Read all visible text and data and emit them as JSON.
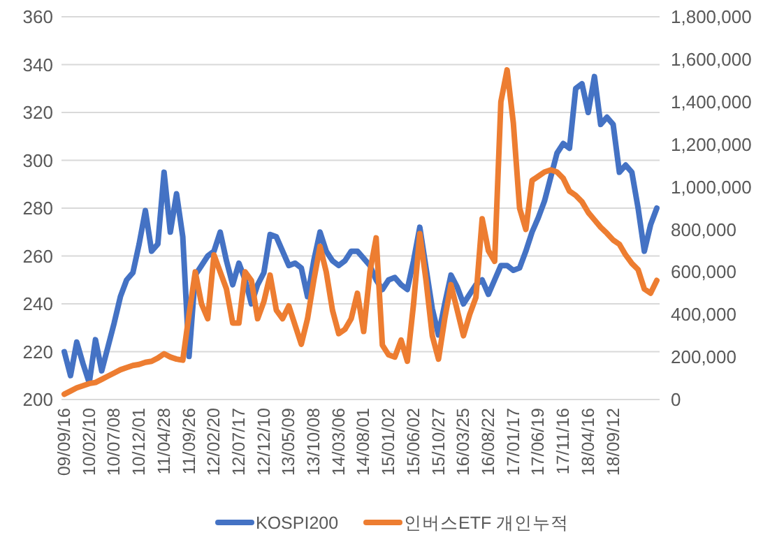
{
  "chart_data": {
    "type": "line",
    "categories": [
      "09/09/16",
      null,
      null,
      null,
      "10/02/10",
      null,
      null,
      null,
      "10/07/08",
      null,
      null,
      null,
      "10/12/01",
      null,
      null,
      null,
      "11/04/28",
      null,
      null,
      null,
      "11/09/26",
      null,
      null,
      null,
      "12/02/20",
      null,
      null,
      null,
      "12/07/17",
      null,
      null,
      null,
      "12/12/10",
      null,
      null,
      null,
      "13/05/09",
      null,
      null,
      null,
      "13/10/08",
      null,
      null,
      null,
      "14/03/06",
      null,
      null,
      null,
      "14/08/01",
      null,
      null,
      null,
      "15/01/02",
      null,
      null,
      null,
      "15/06/02",
      null,
      null,
      null,
      "15/10/27",
      null,
      null,
      null,
      "16/03/25",
      null,
      null,
      null,
      "16/08/22",
      null,
      null,
      null,
      "17/01/17",
      null,
      null,
      null,
      "17/06/19",
      null,
      null,
      null,
      "17/11/16",
      null,
      null,
      null,
      "18/04/16",
      null,
      null,
      null,
      "18/09/12",
      null,
      null,
      null,
      null,
      null,
      null,
      null
    ],
    "series": [
      {
        "name": "KOSPI200",
        "color": "#4472c4",
        "values": [
          220,
          210,
          224,
          215,
          207,
          225,
          212,
          222,
          232,
          243,
          250,
          253,
          265,
          279,
          262,
          265,
          295,
          270,
          286,
          268,
          218,
          252,
          256,
          260,
          262,
          270,
          258,
          248,
          257,
          250,
          240,
          248,
          253,
          269,
          268,
          262,
          256,
          257,
          255,
          243,
          258,
          270,
          262,
          258,
          256,
          258,
          262,
          262,
          259,
          256,
          250,
          246,
          250,
          251,
          248,
          246,
          258,
          272,
          255,
          238,
          227,
          240,
          252,
          247,
          240,
          244,
          248,
          250,
          244,
          250,
          256,
          256,
          254,
          255,
          262,
          270,
          276,
          283,
          293,
          303,
          307,
          305,
          330,
          332,
          320,
          335,
          315,
          318,
          315,
          295,
          298,
          295,
          280,
          262,
          273,
          280
        ]
      },
      {
        "name": "인버스ETF 개인누적",
        "color": "#ed7d31",
        "axis": "y2",
        "values": [
          25000,
          40000,
          55000,
          65000,
          75000,
          80000,
          95000,
          110000,
          125000,
          140000,
          150000,
          160000,
          165000,
          175000,
          180000,
          195000,
          215000,
          200000,
          190000,
          185000,
          400000,
          600000,
          450000,
          380000,
          680000,
          600000,
          520000,
          360000,
          360000,
          600000,
          560000,
          380000,
          460000,
          585000,
          420000,
          380000,
          440000,
          350000,
          260000,
          380000,
          560000,
          720000,
          600000,
          420000,
          310000,
          330000,
          380000,
          500000,
          320000,
          600000,
          760000,
          256000,
          210000,
          200000,
          280000,
          180000,
          450000,
          780000,
          560000,
          300000,
          190000,
          380000,
          540000,
          420000,
          300000,
          400000,
          480000,
          850000,
          700000,
          650000,
          1400000,
          1550000,
          1300000,
          900000,
          800000,
          1030000,
          1050000,
          1070000,
          1080000,
          1070000,
          1040000,
          980000,
          960000,
          930000,
          880000,
          845000,
          810000,
          782000,
          750000,
          730000,
          680000,
          640000,
          611000,
          520000,
          500000,
          560000
        ]
      }
    ],
    "ylim": [
      200,
      360
    ],
    "yticks": [
      200,
      220,
      240,
      260,
      280,
      300,
      320,
      340,
      360
    ],
    "y2lim": [
      0,
      1800000
    ],
    "y2ticks": [
      {
        "value": 0,
        "label": "0"
      },
      {
        "value": 200000,
        "label": "200,000"
      },
      {
        "value": 400000,
        "label": "400,000"
      },
      {
        "value": 600000,
        "label": "600,000"
      },
      {
        "value": 800000,
        "label": "800,000"
      },
      {
        "value": 1000000,
        "label": "1,000,000"
      },
      {
        "value": 1200000,
        "label": "1,200,000"
      },
      {
        "value": 1400000,
        "label": "1,400,000"
      },
      {
        "value": 1600000,
        "label": "1,600,000"
      },
      {
        "value": 1800000,
        "label": "1,800,000"
      }
    ],
    "grid": "y",
    "legend": "bottom",
    "marker": "none",
    "line_style": "solid"
  }
}
